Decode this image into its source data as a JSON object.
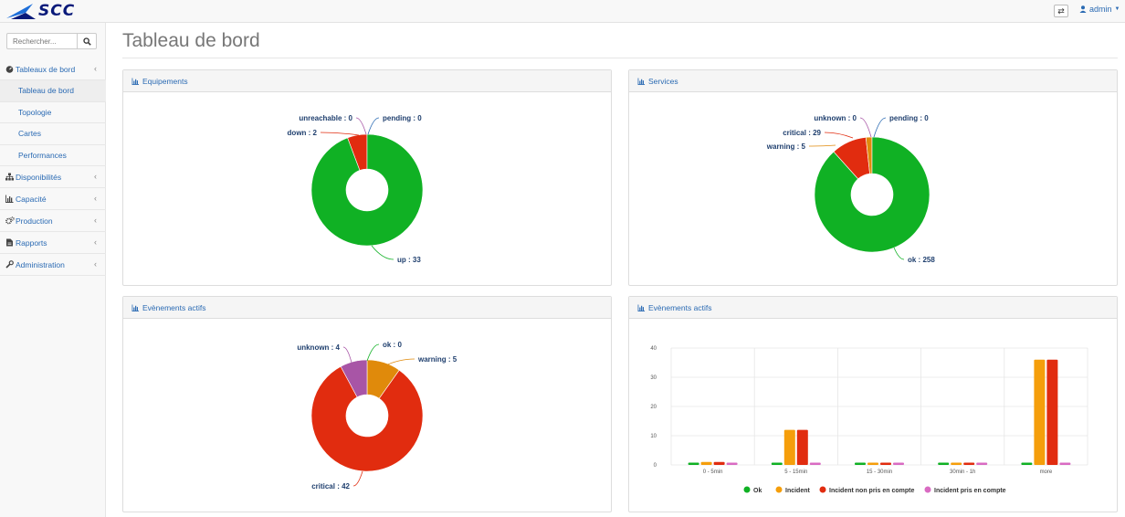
{
  "brand": {
    "logo_text": "SCC"
  },
  "topbar": {
    "swap_icon": "⇄",
    "user_label": "admin"
  },
  "search": {
    "placeholder": "Rechercher..."
  },
  "sidebar": {
    "sections": [
      {
        "label": "Tableaux de bord",
        "icon": "dashboard-icon"
      },
      {
        "label": "Disponibilités",
        "icon": "sitemap-icon"
      },
      {
        "label": "Capacité",
        "icon": "bar-chart-icon"
      },
      {
        "label": "Production",
        "icon": "gears-icon"
      },
      {
        "label": "Rapports",
        "icon": "file-icon"
      },
      {
        "label": "Administration",
        "icon": "wrench-icon"
      }
    ],
    "subitems": [
      "Tableau de bord",
      "Topologie",
      "Cartes",
      "Performances"
    ]
  },
  "page": {
    "title": "Tableau de bord"
  },
  "panels": {
    "equipements": "Equipements",
    "services": "Services",
    "events1": "Evènements actifs",
    "events2": "Evènements actifs"
  },
  "colors": {
    "green": "#10b124",
    "red": "#e12c0f",
    "orange": "#e08a0b",
    "purple": "#a855a6",
    "link": "#2a6ab3",
    "pink": "#d96bc2",
    "orange_bar": "#f59e0b"
  },
  "chart_data": [
    {
      "type": "pie",
      "title": "Equipements",
      "slices": [
        {
          "label": "up : 33",
          "value": 33,
          "color": "#10b124"
        },
        {
          "label": "down : 2",
          "value": 2,
          "color": "#e12c0f"
        },
        {
          "label": "unreachable : 0",
          "value": 0,
          "color": "#a855a6"
        },
        {
          "label": "pending : 0",
          "value": 0,
          "color": "#2a6ab3"
        }
      ]
    },
    {
      "type": "pie",
      "title": "Services",
      "slices": [
        {
          "label": "ok : 258",
          "value": 258,
          "color": "#10b124"
        },
        {
          "label": "warning : 5",
          "value": 5,
          "color": "#e08a0b"
        },
        {
          "label": "critical : 29",
          "value": 29,
          "color": "#e12c0f"
        },
        {
          "label": "unknown : 0",
          "value": 0,
          "color": "#a855a6"
        },
        {
          "label": "pending : 0",
          "value": 0,
          "color": "#2a6ab3"
        }
      ]
    },
    {
      "type": "pie",
      "title": "Evènements actifs",
      "slices": [
        {
          "label": "ok : 0",
          "value": 0,
          "color": "#10b124"
        },
        {
          "label": "warning : 5",
          "value": 5,
          "color": "#e08a0b"
        },
        {
          "label": "critical : 42",
          "value": 42,
          "color": "#e12c0f"
        },
        {
          "label": "unknown : 4",
          "value": 4,
          "color": "#a855a6"
        }
      ]
    },
    {
      "type": "bar",
      "title": "Evènements actifs",
      "categories": [
        "0 - 5min",
        "5 - 15min",
        "15 - 30min",
        "30min - 1h",
        "more"
      ],
      "ylim": [
        0,
        40
      ],
      "yticks": [
        "0",
        "10",
        "20",
        "30",
        "40"
      ],
      "series": [
        {
          "name": "Ok",
          "values": [
            0,
            0,
            0,
            0,
            0
          ],
          "color": "#10b124"
        },
        {
          "name": "Incident",
          "values": [
            1,
            12,
            0,
            0,
            36
          ],
          "color": "#f59e0b"
        },
        {
          "name": "Incident non pris en compte",
          "values": [
            1,
            12,
            0,
            0,
            36
          ],
          "color": "#e12c0f"
        },
        {
          "name": "Incident pris en compte",
          "values": [
            0,
            0,
            0,
            0,
            0
          ],
          "color": "#d96bc2"
        }
      ]
    }
  ]
}
